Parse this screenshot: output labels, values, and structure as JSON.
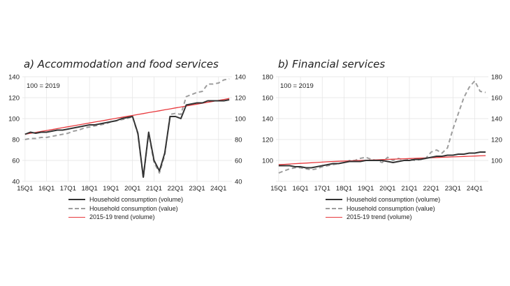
{
  "chart_data": [
    {
      "type": "line",
      "title": "a)   Accommodation and food services",
      "note": "100 = 2019",
      "x": [
        "15Q1",
        "15Q2",
        "15Q3",
        "15Q4",
        "16Q1",
        "16Q2",
        "16Q3",
        "16Q4",
        "17Q1",
        "17Q2",
        "17Q3",
        "17Q4",
        "18Q1",
        "18Q2",
        "18Q3",
        "18Q4",
        "19Q1",
        "19Q2",
        "19Q3",
        "19Q4",
        "20Q1",
        "20Q2",
        "20Q3",
        "20Q4",
        "21Q1",
        "21Q2",
        "21Q3",
        "21Q4",
        "22Q1",
        "22Q2",
        "22Q3",
        "22Q4",
        "23Q1",
        "23Q2",
        "23Q3",
        "23Q4",
        "24Q1",
        "24Q2",
        "24Q3"
      ],
      "xticks": [
        "15Q1",
        "16Q1",
        "17Q1",
        "18Q1",
        "19Q1",
        "20Q1",
        "21Q1",
        "22Q1",
        "23Q1",
        "24Q1"
      ],
      "ylim": [
        40,
        140
      ],
      "yticks_left": [
        "40",
        "60",
        "80",
        "100",
        "120",
        "140"
      ],
      "yticks_right": [
        "40",
        "60",
        "80",
        "100",
        "120",
        "140"
      ],
      "series": [
        {
          "name": "Household consumption (volume)",
          "values": [
            85,
            87,
            86,
            87,
            87,
            88,
            89,
            89,
            90,
            91,
            92,
            93,
            94,
            94,
            95,
            96,
            97,
            98,
            100,
            101,
            102,
            86,
            44,
            87,
            60,
            50,
            67,
            102,
            102,
            100,
            113,
            114,
            115,
            115,
            117,
            117,
            117,
            117,
            118
          ]
        },
        {
          "name": "Household consumption (value)",
          "values": [
            80,
            81,
            81,
            82,
            82,
            83,
            84,
            85,
            86,
            88,
            89,
            91,
            92,
            93,
            94,
            95,
            97,
            98,
            99,
            100,
            102,
            85,
            43,
            86,
            58,
            48,
            65,
            104,
            105,
            104,
            121,
            123,
            125,
            126,
            133,
            133,
            134,
            137,
            138
          ]
        },
        {
          "name": "2015-19 trend (volume)",
          "values": [
            85,
            85.9,
            86.8,
            87.7,
            88.6,
            89.5,
            90.4,
            91.3,
            92.2,
            93.1,
            94,
            94.9,
            95.8,
            96.7,
            97.6,
            98.5,
            99.4,
            100.3,
            101.2,
            102.1,
            103,
            103.9,
            104.8,
            105.7,
            106.6,
            107.5,
            108.4,
            109.3,
            110.2,
            111.1,
            112,
            112.9,
            113.8,
            114.7,
            115.6,
            116.5,
            117.4,
            118.3,
            119.2
          ]
        }
      ],
      "legend": [
        "Household consumption (volume)",
        "Household consumption (value)",
        "2015-19 trend (volume)"
      ]
    },
    {
      "type": "line",
      "title": "b)   Financial services",
      "note": "100 = 2019",
      "x": [
        "15Q1",
        "15Q2",
        "15Q3",
        "15Q4",
        "16Q1",
        "16Q2",
        "16Q3",
        "16Q4",
        "17Q1",
        "17Q2",
        "17Q3",
        "17Q4",
        "18Q1",
        "18Q2",
        "18Q3",
        "18Q4",
        "19Q1",
        "19Q2",
        "19Q3",
        "19Q4",
        "20Q1",
        "20Q2",
        "20Q3",
        "20Q4",
        "21Q1",
        "21Q2",
        "21Q3",
        "21Q4",
        "22Q1",
        "22Q2",
        "22Q3",
        "22Q4",
        "23Q1",
        "23Q2",
        "23Q3",
        "23Q4",
        "24Q1",
        "24Q2",
        "24Q3"
      ],
      "xticks": [
        "15Q1",
        "16Q1",
        "17Q1",
        "18Q1",
        "19Q1",
        "20Q1",
        "21Q1",
        "22Q1",
        "23Q1",
        "24Q1"
      ],
      "ylim": [
        80,
        180
      ],
      "yticks_left": [
        "100",
        "120",
        "140",
        "160",
        "180"
      ],
      "yticks_right": [
        "100",
        "120",
        "140",
        "160",
        "180"
      ],
      "series": [
        {
          "name": "Household consumption (volume)",
          "values": [
            95,
            95,
            95,
            94,
            94,
            93,
            93,
            94,
            95,
            96,
            97,
            97,
            98,
            99,
            99,
            99,
            100,
            100,
            100,
            100,
            99,
            98,
            99,
            100,
            100,
            101,
            101,
            102,
            103,
            104,
            104,
            105,
            105,
            106,
            106,
            107,
            107,
            108,
            108
          ]
        },
        {
          "name": "Household consumption (value)",
          "values": [
            88,
            90,
            92,
            93,
            93,
            92,
            91,
            92,
            94,
            95,
            96,
            97,
            98,
            100,
            100,
            102,
            103,
            101,
            100,
            98,
            103,
            100,
            102,
            100,
            101,
            100,
            101,
            102,
            108,
            110,
            107,
            112,
            130,
            145,
            160,
            170,
            176,
            166,
            165
          ]
        },
        {
          "name": "2015-19 trend (volume)",
          "values": [
            96,
            96.3,
            96.6,
            96.9,
            97.2,
            97.5,
            97.8,
            98.1,
            98.4,
            98.7,
            99,
            99.2,
            99.4,
            99.6,
            99.8,
            100,
            100.2,
            100.4,
            100.6,
            100.8,
            101,
            101.2,
            101.4,
            101.6,
            101.8,
            102,
            102.2,
            102.4,
            102.6,
            102.8,
            103,
            103.2,
            103.4,
            103.6,
            103.8,
            104,
            104.2,
            104.4,
            104.6
          ]
        }
      ],
      "legend": [
        "Household consumption (volume)",
        "Household consumption (value)",
        "2015-19 trend (volume)"
      ]
    }
  ],
  "style": {
    "volume_color": "#333333",
    "value_color": "#9e9e9e",
    "trend_color": "#e8393d",
    "grid_color": "#e3e3e3"
  }
}
